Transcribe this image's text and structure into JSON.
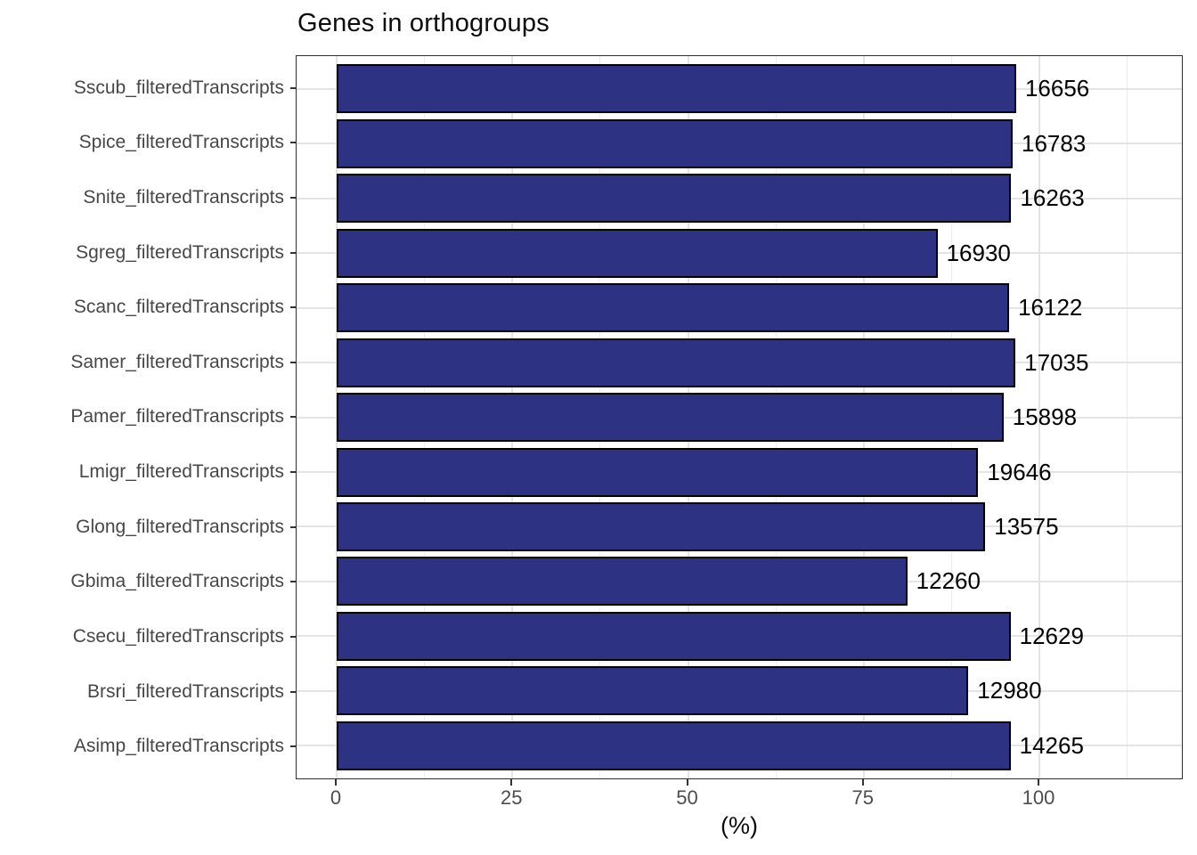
{
  "title": "Genes in orthogroups",
  "axis": {
    "x_label": "(%)",
    "x_ticks": [
      0,
      25,
      50,
      75,
      100
    ],
    "x_minor_gridlines": [
      12.5,
      37.5,
      62.5,
      87.5,
      112.5
    ]
  },
  "chart_data": {
    "type": "bar",
    "orientation": "horizontal",
    "title": "Genes in orthogroups",
    "xlabel": "(%)",
    "xlim": [
      0,
      120
    ],
    "grid": true,
    "bar_color": "#2d3382",
    "bar_border_color": "#000000",
    "series": [
      {
        "category": "Sscub_filteredTranscripts",
        "pct": 96.7,
        "count": "16656"
      },
      {
        "category": "Spice_filteredTranscripts",
        "pct": 96.2,
        "count": "16783"
      },
      {
        "category": "Snite_filteredTranscripts",
        "pct": 96.0,
        "count": "16263"
      },
      {
        "category": "Sgreg_filteredTranscripts",
        "pct": 85.5,
        "count": "16930"
      },
      {
        "category": "Scanc_filteredTranscripts",
        "pct": 95.7,
        "count": "16122"
      },
      {
        "category": "Samer_filteredTranscripts",
        "pct": 96.6,
        "count": "17035"
      },
      {
        "category": "Pamer_filteredTranscripts",
        "pct": 94.9,
        "count": "15898"
      },
      {
        "category": "Lmigr_filteredTranscripts",
        "pct": 91.3,
        "count": "19646"
      },
      {
        "category": "Glong_filteredTranscripts",
        "pct": 92.3,
        "count": "13575"
      },
      {
        "category": "Gbima_filteredTranscripts",
        "pct": 81.2,
        "count": "12260"
      },
      {
        "category": "Csecu_filteredTranscripts",
        "pct": 95.9,
        "count": "12629"
      },
      {
        "category": "Brsri_filteredTranscripts",
        "pct": 89.9,
        "count": "12980"
      },
      {
        "category": "Asimp_filteredTranscripts",
        "pct": 95.9,
        "count": "14265"
      }
    ]
  }
}
